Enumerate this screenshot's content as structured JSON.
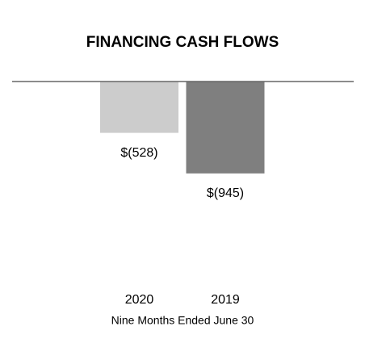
{
  "chart_data": {
    "type": "bar",
    "title": "FINANCING CASH FLOWS",
    "categories": [
      "2020",
      "2019"
    ],
    "values": [
      -528,
      -945
    ],
    "value_labels": [
      "$(528)",
      "$(945)"
    ],
    "colors": [
      "#cccccc",
      "#7f7f7f"
    ],
    "x_label": "Nine Months Ended June 30",
    "ylim": [
      -2000,
      0
    ]
  }
}
